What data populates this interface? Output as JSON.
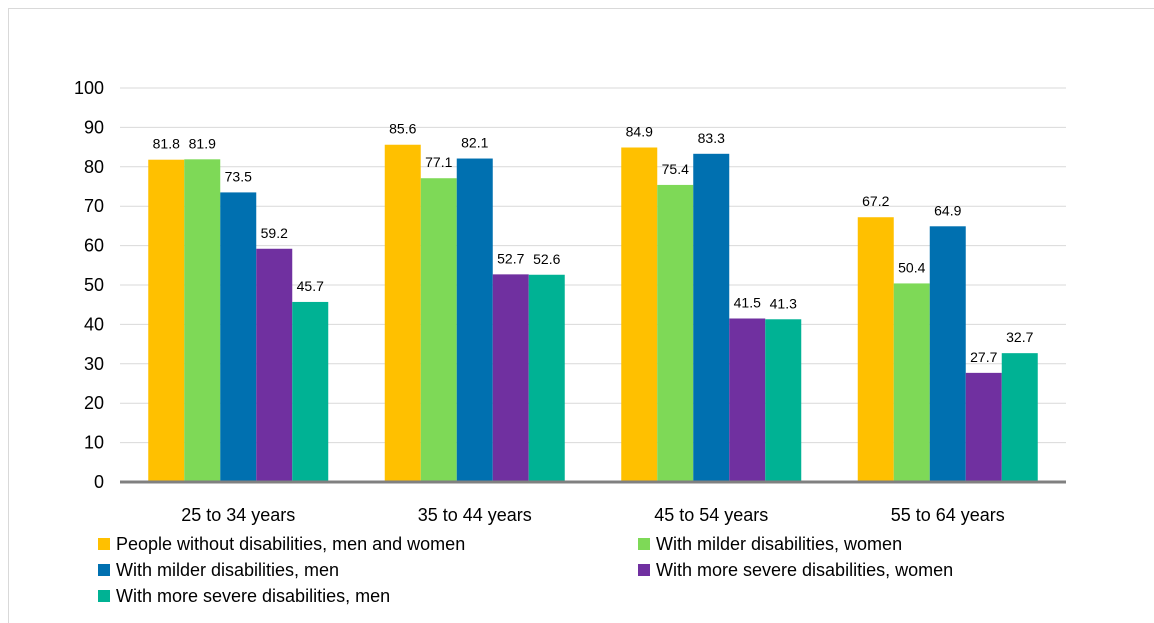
{
  "chart_data": {
    "type": "bar",
    "title": "",
    "xlabel": "",
    "ylabel": "",
    "ylim": [
      0,
      100
    ],
    "yticks": [
      0,
      10,
      20,
      30,
      40,
      50,
      60,
      70,
      80,
      90,
      100
    ],
    "grid": true,
    "legend_position": "bottom",
    "categories": [
      "25 to 34 years",
      "35 to 44 years",
      "45 to 54 years",
      "55 to 64 years"
    ],
    "series": [
      {
        "name": "People without disabilities, men and women",
        "color": "#FFC000",
        "values": [
          81.8,
          85.6,
          84.9,
          67.2
        ]
      },
      {
        "name": "With milder disabilities, women",
        "color": "#7ED957",
        "values": [
          81.9,
          77.1,
          75.4,
          50.4
        ]
      },
      {
        "name": "With milder disabilities, men",
        "color": "#0070B0",
        "values": [
          73.5,
          82.1,
          83.3,
          64.9
        ]
      },
      {
        "name": "With more severe disabilities, women",
        "color": "#7030A0",
        "values": [
          59.2,
          52.7,
          41.5,
          27.7
        ]
      },
      {
        "name": "With more severe disabilities, men",
        "color": "#00B294",
        "values": [
          45.7,
          52.6,
          41.3,
          32.7
        ]
      }
    ]
  }
}
